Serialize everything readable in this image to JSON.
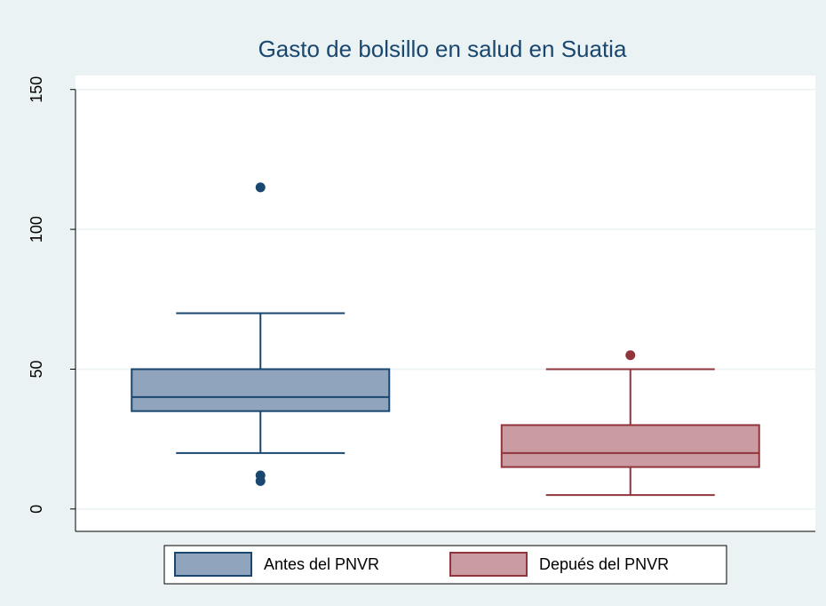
{
  "chart_data": {
    "type": "box",
    "title": "Gasto de bolsillo en salud en Suatia",
    "ylim": [
      -8,
      155
    ],
    "yticks": [
      0,
      50,
      100,
      150
    ],
    "grid": true,
    "legend": "bottom",
    "series": [
      {
        "name": "Antes del PNVR",
        "color": "#1a476f",
        "fill": "#90a4bd",
        "whisker_low": 20,
        "q1": 35,
        "median": 40,
        "q3": 50,
        "whisker_high": 70,
        "outliers": [
          115,
          12,
          10
        ]
      },
      {
        "name": "Depués del PNVR",
        "color": "#90353b",
        "fill": "#ca9ba1",
        "whisker_low": 5,
        "q1": 15,
        "median": 20,
        "q3": 30,
        "whisker_high": 50,
        "outliers": [
          55
        ]
      }
    ]
  }
}
